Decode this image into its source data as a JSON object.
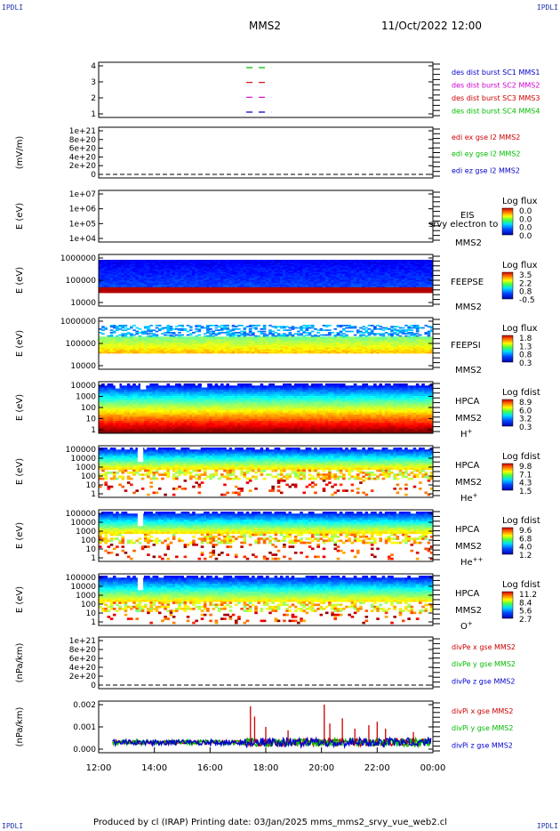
{
  "header": {
    "corner_tl": "IPDLI",
    "corner_tr": "IPDLI",
    "corner_bl": "IPDLI",
    "corner_br": "IPDLI",
    "spacecraft": "MMS2",
    "datetime": "11/Oct/2022 12:00"
  },
  "footer": {
    "text": "Produced by cl (IRAP)   Printing date: 03/Jan/2025   mms_mms2_srvy_vue_web2.cl"
  },
  "colors": {
    "blue": "#0000cc",
    "magenta": "#cc00cc",
    "red": "#cc0000",
    "green": "#00bb00"
  },
  "chart_data": {
    "type": "stacked-panels",
    "x_tick_labels": [
      "12:00",
      "14:00",
      "16:00",
      "18:00",
      "20:00",
      "22:00",
      "00:00"
    ],
    "xlim_hours": [
      12,
      24
    ],
    "panels": [
      {
        "type": "line",
        "ylabel": "",
        "yticks": [
          "4",
          "3",
          "2",
          "1"
        ],
        "legend": [
          "des dist burst SC1 MMS1",
          "des dist burst SC2 MMS2",
          "des dist burst SC3 MMS3",
          "des dist burst SC4 MMS4"
        ],
        "legend_colors": [
          "#0000cc",
          "#cc00cc",
          "#cc0000",
          "#00bb00"
        ],
        "series": [
          {
            "level": 4,
            "color": "#00bb00",
            "x": [
              17.3,
              18.2
            ]
          },
          {
            "level": 3,
            "color": "#cc0000",
            "x": [
              17.3,
              18.2
            ]
          },
          {
            "level": 2,
            "color": "#cc00cc",
            "x": [
              17.3,
              18.2
            ]
          },
          {
            "level": 1,
            "color": "#0000cc",
            "x": [
              17.3,
              18.2
            ]
          }
        ]
      },
      {
        "type": "line",
        "ylabel": "(mV/m)",
        "yticks": [
          "1e+21",
          "8e+20",
          "6e+20",
          "4e+20",
          "2e+20",
          "0"
        ],
        "legend": [
          "edi ex gse l2 MMS2",
          "edi ey gse l2 MMS2",
          "edi ez gse l2 MMS2"
        ],
        "legend_colors": [
          "#cc0000",
          "#00bb00",
          "#0000cc"
        ],
        "zero_line": true
      },
      {
        "type": "heatmap",
        "ylabel": "E (eV)",
        "yticks": [
          "1e+07",
          "1e+06",
          "1e+05",
          "1e+04"
        ],
        "instrument": "EIS",
        "spacecraft": "MMS2",
        "extra_label": "srvy electron to",
        "colorbar_title": "Log flux",
        "colorbar_ticks": [
          "0.0",
          "0.0",
          "0.0",
          "0.0"
        ],
        "empty": true
      },
      {
        "type": "heatmap",
        "ylabel": "E (eV)",
        "yticks": [
          "1000000",
          "100000",
          "10000"
        ],
        "instrument": "FEEPSE",
        "spacecraft": "MMS2",
        "colorbar_title": "Log flux",
        "colorbar_ticks": [
          "3.5",
          "2.2",
          "0.8",
          "-0.5"
        ]
      },
      {
        "type": "heatmap",
        "ylabel": "E (eV)",
        "yticks": [
          "1000000",
          "100000",
          "10000"
        ],
        "instrument": "FEEPSI",
        "spacecraft": "MMS2",
        "colorbar_title": "Log flux",
        "colorbar_ticks": [
          "1.8",
          "1.3",
          "0.8",
          "0.3"
        ]
      },
      {
        "type": "heatmap",
        "ylabel": "E (eV)",
        "yticks": [
          "10000",
          "1000",
          "100",
          "10",
          "1"
        ],
        "instrument": "HPCA",
        "spacecraft": "MMS2",
        "species": "H",
        "charge": "+",
        "colorbar_title": "Log fdist",
        "colorbar_ticks": [
          "8.9",
          "6.0",
          "3.2",
          "0.3"
        ]
      },
      {
        "type": "heatmap",
        "ylabel": "E (eV)",
        "yticks": [
          "100000",
          "10000",
          "1000",
          "100",
          "10",
          "1"
        ],
        "instrument": "HPCA",
        "spacecraft": "MMS2",
        "species": "He",
        "charge": "+",
        "colorbar_title": "Log fdist",
        "colorbar_ticks": [
          "9.8",
          "7.1",
          "4.3",
          "1.5"
        ]
      },
      {
        "type": "heatmap",
        "ylabel": "E (eV)",
        "yticks": [
          "100000",
          "10000",
          "1000",
          "100",
          "10",
          "1"
        ],
        "instrument": "HPCA",
        "spacecraft": "MMS2",
        "species": "He",
        "charge": "++",
        "colorbar_title": "Log fdist",
        "colorbar_ticks": [
          "9.6",
          "6.8",
          "4.0",
          "1.2"
        ]
      },
      {
        "type": "heatmap",
        "ylabel": "E (eV)",
        "yticks": [
          "100000",
          "10000",
          "1000",
          "100",
          "10",
          "1"
        ],
        "instrument": "HPCA",
        "spacecraft": "MMS2",
        "species": "O",
        "charge": "+",
        "colorbar_title": "Log fdist",
        "colorbar_ticks": [
          "11.2",
          "8.4",
          "5.6",
          "2.7"
        ]
      },
      {
        "type": "line",
        "ylabel": "(nPa/km)",
        "yticks": [
          "1e+21",
          "8e+20",
          "6e+20",
          "4e+20",
          "2e+20",
          "0"
        ],
        "legend": [
          "divPe x gse MMS2",
          "divPe y gse MMS2",
          "divPe z gse MMS2"
        ],
        "legend_colors": [
          "#cc0000",
          "#00bb00",
          "#0000cc"
        ],
        "zero_line": true
      },
      {
        "type": "line",
        "ylabel": "(nPa/km)",
        "yticks": [
          "0.002",
          "0.001",
          "0.000"
        ],
        "ylim": [
          -0.0006,
          0.0024
        ],
        "legend": [
          "divPi x gse MMS2",
          "divPi y gse MMS2",
          "divPi z gse MMS2"
        ],
        "legend_colors": [
          "#cc0000",
          "#00bb00",
          "#0000cc"
        ],
        "spikes": [
          {
            "x": 17.45,
            "y": 0.0021
          },
          {
            "x": 17.6,
            "y": 0.0015
          },
          {
            "x": 18.0,
            "y": 0.0009
          },
          {
            "x": 18.8,
            "y": 0.0007
          },
          {
            "x": 20.1,
            "y": 0.0022
          },
          {
            "x": 20.3,
            "y": 0.0011
          },
          {
            "x": 20.75,
            "y": 0.0014
          },
          {
            "x": 21.2,
            "y": 0.0008
          },
          {
            "x": 21.7,
            "y": 0.001
          },
          {
            "x": 22.0,
            "y": 0.0012
          },
          {
            "x": 22.3,
            "y": 0.0008
          },
          {
            "x": 23.3,
            "y": 0.0006
          }
        ]
      }
    ]
  }
}
